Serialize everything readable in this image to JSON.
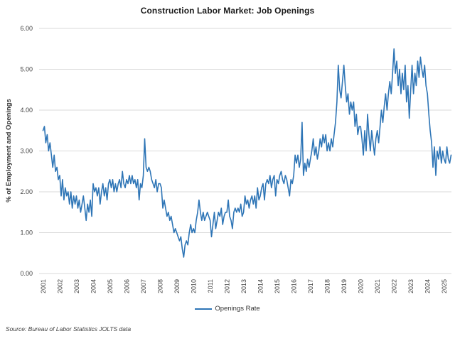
{
  "source_note": "Source: Bureau of Labor Statistics JOLTS data",
  "chart_data": {
    "type": "line",
    "title": "Construction Labor Market: Job Openings",
    "xlabel": "",
    "ylabel": "% of Employment and Openings",
    "ylim": [
      0,
      6
    ],
    "yticks": [
      "0.00",
      "1.00",
      "2.00",
      "3.00",
      "4.00",
      "5.00",
      "6.00"
    ],
    "xticks": [
      "2001",
      "2002",
      "2003",
      "2004",
      "2005",
      "2006",
      "2007",
      "2008",
      "2009",
      "2010",
      "2011",
      "2012",
      "2013",
      "2014",
      "2015",
      "2016",
      "2017",
      "2018",
      "2019",
      "2020",
      "2021",
      "2022",
      "2023",
      "2024",
      "2025"
    ],
    "grid": "horizontal",
    "legend": {
      "position": "bottom-center",
      "entries": [
        {
          "label": "Openings Rate",
          "color": "#2e75b6"
        }
      ]
    },
    "series": [
      {
        "name": "Openings Rate",
        "color": "#2e75b6",
        "frequency": "monthly",
        "start": "2001-01",
        "end": "2025-06",
        "values": [
          3.5,
          3.6,
          3.2,
          3.4,
          3.0,
          3.2,
          2.9,
          2.6,
          2.9,
          2.5,
          2.6,
          2.3,
          2.4,
          1.9,
          2.3,
          1.8,
          2.1,
          1.9,
          2.0,
          1.7,
          2.0,
          1.6,
          1.9,
          1.7,
          1.9,
          1.6,
          1.8,
          1.5,
          1.7,
          1.9,
          1.6,
          1.3,
          1.7,
          1.5,
          1.8,
          1.4,
          2.2,
          2.0,
          2.1,
          1.9,
          2.1,
          1.7,
          2.0,
          2.2,
          1.9,
          2.1,
          1.8,
          2.2,
          2.3,
          2.1,
          2.3,
          2.0,
          2.2,
          2.0,
          2.2,
          2.3,
          2.1,
          2.5,
          2.2,
          2.1,
          2.3,
          2.2,
          2.4,
          2.2,
          2.4,
          2.2,
          2.3,
          2.1,
          2.3,
          1.8,
          2.2,
          2.1,
          2.4,
          3.3,
          2.6,
          2.5,
          2.6,
          2.5,
          2.3,
          2.2,
          2.1,
          2.3,
          2.0,
          2.2,
          2.2,
          2.1,
          1.6,
          1.8,
          1.6,
          1.4,
          1.5,
          1.3,
          1.4,
          1.2,
          1.0,
          1.1,
          1.0,
          0.9,
          0.8,
          0.9,
          0.6,
          0.4,
          0.7,
          0.8,
          0.7,
          1.0,
          1.2,
          1.0,
          1.1,
          1.0,
          1.3,
          1.5,
          1.8,
          1.5,
          1.3,
          1.5,
          1.3,
          1.4,
          1.5,
          1.4,
          1.3,
          0.9,
          1.2,
          1.5,
          1.1,
          1.3,
          1.5,
          1.4,
          1.6,
          1.2,
          1.4,
          1.5,
          1.5,
          1.8,
          1.4,
          1.3,
          1.1,
          1.5,
          1.6,
          1.5,
          1.6,
          1.5,
          1.7,
          1.4,
          1.5,
          1.9,
          1.7,
          1.8,
          1.6,
          1.8,
          1.9,
          1.7,
          1.9,
          1.6,
          2.1,
          1.8,
          1.9,
          2.1,
          2.2,
          1.8,
          2.2,
          2.3,
          2.2,
          2.4,
          2.1,
          2.3,
          2.4,
          1.9,
          2.3,
          2.2,
          2.4,
          2.5,
          2.3,
          2.2,
          2.4,
          2.3,
          2.1,
          1.9,
          2.3,
          2.2,
          2.4,
          2.9,
          2.7,
          2.9,
          2.6,
          2.8,
          3.7,
          2.4,
          2.7,
          2.5,
          2.8,
          2.6,
          2.8,
          3.0,
          3.3,
          2.9,
          3.1,
          2.8,
          3.0,
          3.3,
          3.1,
          3.4,
          3.2,
          3.4,
          3.0,
          3.2,
          3.0,
          3.3,
          3.1,
          3.4,
          3.7,
          4.2,
          5.1,
          4.5,
          4.3,
          4.7,
          5.1,
          4.6,
          4.2,
          4.4,
          3.9,
          4.2,
          4.0,
          4.2,
          3.6,
          3.9,
          3.4,
          3.6,
          3.6,
          3.3,
          2.9,
          3.5,
          3.0,
          3.9,
          3.4,
          3.0,
          3.5,
          3.2,
          2.9,
          3.3,
          3.5,
          3.2,
          3.6,
          4.0,
          3.7,
          4.1,
          4.4,
          4.0,
          4.4,
          4.7,
          4.4,
          4.9,
          5.5,
          4.9,
          5.2,
          4.6,
          5.0,
          4.4,
          4.9,
          4.5,
          5.1,
          4.2,
          4.6,
          3.8,
          4.5,
          5.1,
          4.4,
          4.9,
          4.6,
          5.2,
          4.8,
          5.3,
          5.0,
          4.8,
          5.1,
          4.6,
          4.4,
          3.9,
          3.5,
          3.2,
          2.6,
          3.1,
          2.4,
          3.0,
          2.8,
          3.1,
          2.7,
          3.0,
          2.8,
          2.7,
          3.1,
          2.8,
          2.7,
          2.9
        ]
      }
    ]
  }
}
